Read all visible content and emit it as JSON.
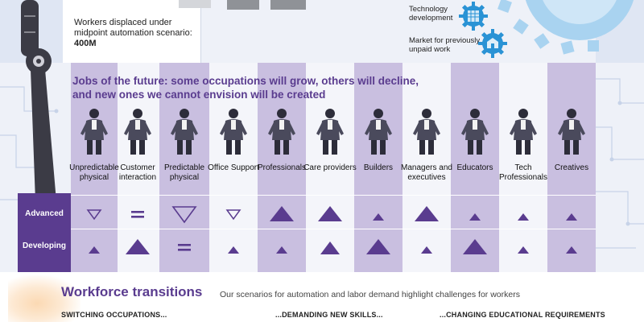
{
  "top": {
    "displaced_label": "Workers displaced under midpoint automation scenario: ",
    "displaced_value": "400M",
    "tech_development": "Technology development",
    "market_unpaid": "Market for previously unpaid work"
  },
  "headline": {
    "line1": "Jobs of the future: some occupations will grow, others will decline,",
    "line2": "and new ones we cannot envision will be created"
  },
  "occupations": [
    {
      "label": "Unpredictable physical",
      "advanced": "down-outline-small",
      "developing": "up-small"
    },
    {
      "label": "Customer interaction",
      "advanced": "equal",
      "developing": "up-large"
    },
    {
      "label": "Predictable physical",
      "advanced": "down-outline-large",
      "developing": "equal"
    },
    {
      "label": "Office Support",
      "advanced": "down-outline-small",
      "developing": "up-small"
    },
    {
      "label": "Professionals",
      "advanced": "up-large",
      "developing": "up-small"
    },
    {
      "label": "Care providers",
      "advanced": "up-large",
      "developing": "up-medium"
    },
    {
      "label": "Builders",
      "advanced": "up-small",
      "developing": "up-large"
    },
    {
      "label": "Managers and executives",
      "advanced": "up-large",
      "developing": "up-small"
    },
    {
      "label": "Educators",
      "advanced": "up-small",
      "developing": "up-large"
    },
    {
      "label": "Tech Professionals",
      "advanced": "up-small",
      "developing": "up-small"
    },
    {
      "label": "Creatives",
      "advanced": "up-small",
      "developing": "up-small"
    }
  ],
  "rows": {
    "advanced": "Advanced",
    "developing": "Developing"
  },
  "bottom": {
    "title": "Workforce transitions",
    "subtitle": "Our scenarios for automation and labor demand highlight challenges for workers",
    "heads": [
      "SWITCHING OCCUPATIONS...",
      "...DEMANDING NEW SKILLS...",
      "...CHANGING EDUCATIONAL REQUIREMENTS"
    ]
  },
  "colors": {
    "purple": "#5a3c8f",
    "lavender": "#c9bfe0",
    "gear_blue": "#2a93d5"
  },
  "icons": [
    "robot-arm-icon",
    "gear-icon",
    "worker-figure-icon"
  ]
}
